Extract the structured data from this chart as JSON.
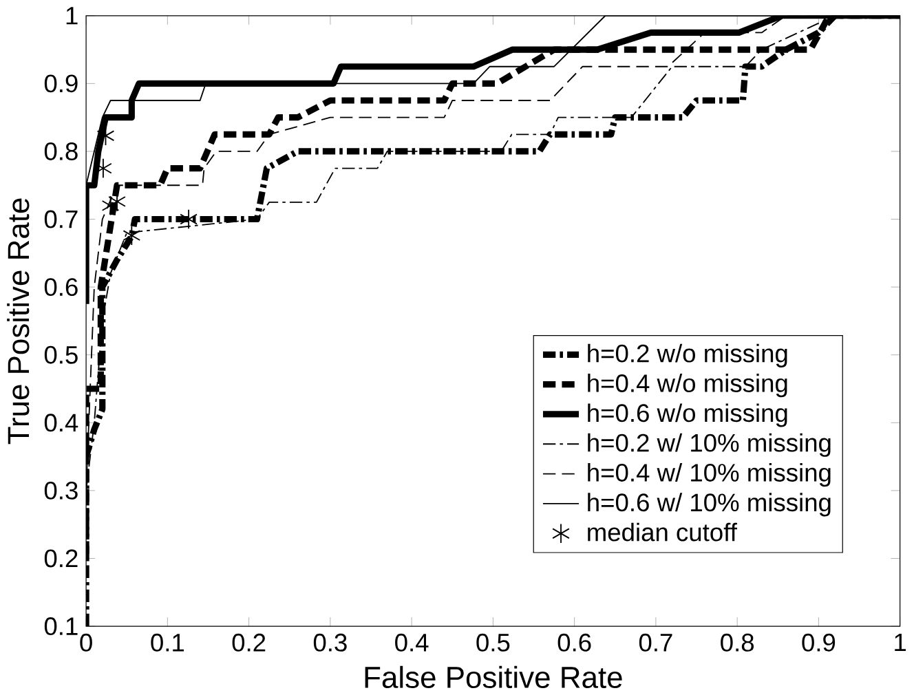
{
  "chart_data": {
    "type": "line",
    "xlabel": "False Positive Rate",
    "ylabel": "True Positive Rate",
    "xlim": [
      0,
      1
    ],
    "ylim": [
      0.1,
      1
    ],
    "xticks": [
      0,
      0.1,
      0.2,
      0.3,
      0.4,
      0.5,
      0.6,
      0.7,
      0.8,
      0.9,
      1
    ],
    "yticks": [
      0.1,
      0.2,
      0.3,
      0.4,
      0.5,
      0.6,
      0.7,
      0.8,
      0.9,
      1
    ],
    "grid": false,
    "legend": "bottom right",
    "marker": "none",
    "series": [
      {
        "name": "h=0.2 w/o missing",
        "color": "#000000",
        "line_style": "dashdot",
        "x": [
          0,
          0,
          0.01,
          0.02,
          0.02,
          0.038,
          0.056,
          0.06,
          0.21,
          0.222,
          0.26,
          0.557,
          0.57,
          0.645,
          0.65,
          0.733,
          0.75,
          0.807,
          0.81,
          0.83,
          0.86,
          0.9,
          0.92,
          1
        ],
        "values": [
          0.1,
          0.35,
          0.39,
          0.42,
          0.6,
          0.64,
          0.675,
          0.7,
          0.7,
          0.775,
          0.8,
          0.8,
          0.825,
          0.825,
          0.85,
          0.85,
          0.875,
          0.875,
          0.925,
          0.925,
          0.95,
          0.975,
          1,
          1
        ]
      },
      {
        "name": "h=0.4 w/o missing",
        "color": "#000000",
        "line_style": "dashed",
        "x": [
          0,
          0,
          0.018,
          0.018,
          0.038,
          0.091,
          0.1,
          0.14,
          0.158,
          0.225,
          0.236,
          0.26,
          0.3,
          0.44,
          0.45,
          0.505,
          0.575,
          0.89,
          0.913,
          1
        ],
        "values": [
          0.2,
          0.45,
          0.45,
          0.6,
          0.75,
          0.75,
          0.775,
          0.775,
          0.825,
          0.825,
          0.85,
          0.85,
          0.875,
          0.875,
          0.9,
          0.9,
          0.95,
          0.95,
          1,
          1
        ]
      },
      {
        "name": "h=0.6 w/o missing",
        "color": "#000000",
        "line_style": "solid",
        "x": [
          0,
          0,
          0.01,
          0.015,
          0.024,
          0.056,
          0.056,
          0.065,
          0.304,
          0.313,
          0.476,
          0.524,
          0.628,
          0.694,
          0.802,
          0.855,
          1
        ],
        "values": [
          0.575,
          0.75,
          0.75,
          0.8,
          0.85,
          0.85,
          0.875,
          0.9,
          0.9,
          0.925,
          0.925,
          0.95,
          0.95,
          0.975,
          0.975,
          1,
          1
        ]
      },
      {
        "name": "h=0.2 w/ 10% missing",
        "color": "#000000",
        "line_style": "dashdot",
        "x": [
          0,
          0.01,
          0.02,
          0.03,
          0.05,
          0.21,
          0.225,
          0.283,
          0.306,
          0.358,
          0.37,
          0.51,
          0.523,
          0.57,
          0.58,
          0.67,
          0.72,
          0.81,
          0.83,
          0.92,
          1
        ],
        "values": [
          0.3,
          0.4,
          0.55,
          0.62,
          0.68,
          0.7,
          0.725,
          0.725,
          0.775,
          0.775,
          0.8,
          0.8,
          0.825,
          0.825,
          0.85,
          0.85,
          0.925,
          0.925,
          0.95,
          1,
          1
        ]
      },
      {
        "name": "h=0.4 w/ 10% missing",
        "color": "#000000",
        "line_style": "dashed",
        "x": [
          0,
          0.005,
          0.01,
          0.02,
          0.038,
          0.143,
          0.145,
          0.16,
          0.21,
          0.225,
          0.3,
          0.44,
          0.45,
          0.57,
          0.61,
          0.715,
          0.76,
          0.83,
          0.86,
          1
        ],
        "values": [
          0.3,
          0.45,
          0.6,
          0.7,
          0.75,
          0.75,
          0.775,
          0.8,
          0.8,
          0.825,
          0.85,
          0.85,
          0.875,
          0.875,
          0.925,
          0.925,
          0.975,
          0.975,
          1,
          1
        ]
      },
      {
        "name": "h=0.6 w/ 10% missing",
        "color": "#000000",
        "line_style": "solid",
        "x": [
          0,
          0,
          0.01,
          0.02,
          0.03,
          0.14,
          0.147,
          0.476,
          0.496,
          0.575,
          0.638,
          1
        ],
        "values": [
          0.6,
          0.75,
          0.8,
          0.85,
          0.875,
          0.875,
          0.9,
          0.9,
          0.925,
          0.925,
          1,
          1
        ]
      },
      {
        "name": "median cutoff",
        "type": "scatter",
        "marker": "cross",
        "color": "#000000",
        "x": [
          0.024,
          0.021,
          0.03,
          0.038,
          0.056,
          0.126
        ],
        "values": [
          0.823,
          0.775,
          0.72,
          0.726,
          0.676,
          0.7
        ]
      }
    ]
  }
}
